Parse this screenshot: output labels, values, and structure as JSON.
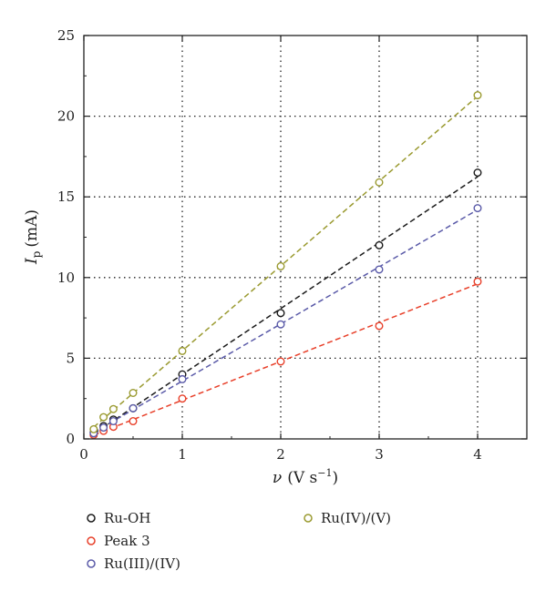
{
  "chart_data": {
    "type": "scatter",
    "xlabel": {
      "symbol": "ν",
      "unit": "(V s",
      "exp": "−1",
      "close": ")"
    },
    "ylabel": {
      "symbol": "I",
      "sub": "p",
      "unit": "(mA)"
    },
    "xlim": [
      0,
      4.5
    ],
    "ylim": [
      0,
      25
    ],
    "xticks": [
      0,
      1,
      2,
      3,
      4
    ],
    "yticks": [
      0,
      5,
      10,
      15,
      20,
      25
    ],
    "grid": true,
    "fit_lines": true,
    "legend_position": "bottom",
    "series": [
      {
        "name": "Ru-OH",
        "color": "#1a1a1a",
        "x": [
          0.1,
          0.2,
          0.3,
          0.5,
          1,
          2,
          3,
          4
        ],
        "y": [
          0.4,
          0.8,
          1.2,
          1.9,
          4.0,
          7.8,
          12.0,
          16.5
        ]
      },
      {
        "name": "Peak 3",
        "color": "#e8402a",
        "x": [
          0.1,
          0.2,
          0.3,
          0.5,
          1,
          2,
          3,
          4
        ],
        "y": [
          0.25,
          0.5,
          0.75,
          1.1,
          2.5,
          4.8,
          7.0,
          9.75
        ]
      },
      {
        "name": "Ru(III)/(IV)",
        "color": "#5a5aa8",
        "x": [
          0.1,
          0.2,
          0.3,
          0.5,
          1,
          2,
          3,
          4
        ],
        "y": [
          0.35,
          0.7,
          1.1,
          1.9,
          3.7,
          7.1,
          10.5,
          14.3
        ]
      },
      {
        "name": "Ru(IV)/(V)",
        "color": "#9a9a30",
        "x": [
          0.1,
          0.2,
          0.3,
          0.5,
          1,
          2,
          3,
          4
        ],
        "y": [
          0.6,
          1.35,
          1.85,
          2.85,
          5.45,
          10.7,
          15.9,
          21.3
        ]
      }
    ]
  }
}
